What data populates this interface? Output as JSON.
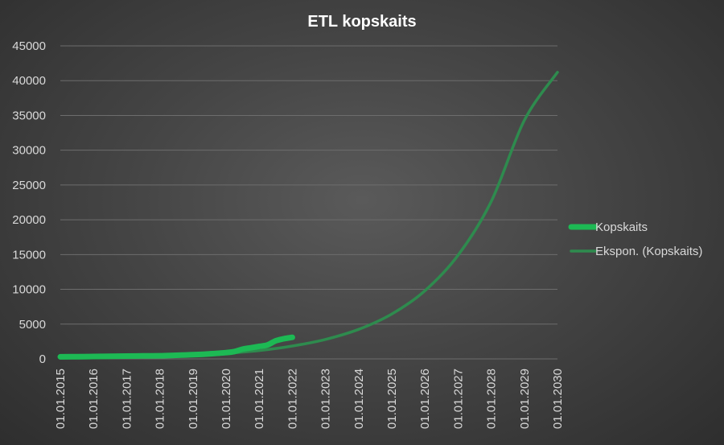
{
  "chart_data": {
    "type": "line",
    "title": "ETL kopskaits",
    "xlabel": "",
    "ylabel": "",
    "ylim": [
      0,
      45000
    ],
    "y_ticks": [
      0,
      5000,
      10000,
      15000,
      20000,
      25000,
      30000,
      35000,
      40000,
      45000
    ],
    "x_ticks": [
      "01.01.2015",
      "01.01.2016",
      "01.01.2017",
      "01.01.2018",
      "01.01.2019",
      "01.01.2020",
      "01.01.2021",
      "01.01.2022",
      "01.01.2023",
      "01.01.2024",
      "01.01.2025",
      "01.01.2026",
      "01.01.2027",
      "01.01.2028",
      "01.01.2029",
      "01.01.2030"
    ],
    "grid": true,
    "legend_position": "right",
    "series": [
      {
        "name": "Kopskaits",
        "color": "#1db954",
        "points": [
          [
            "01.01.2015",
            300
          ],
          [
            "01.07.2015",
            320
          ],
          [
            "01.01.2016",
            350
          ],
          [
            "01.07.2016",
            380
          ],
          [
            "01.01.2017",
            400
          ],
          [
            "01.07.2017",
            430
          ],
          [
            "01.01.2018",
            450
          ],
          [
            "01.07.2018",
            520
          ],
          [
            "01.01.2019",
            600
          ],
          [
            "01.07.2019",
            720
          ],
          [
            "01.01.2020",
            900
          ],
          [
            "01.04.2020",
            1050
          ],
          [
            "01.07.2020",
            1400
          ],
          [
            "01.10.2020",
            1600
          ],
          [
            "01.01.2021",
            1800
          ],
          [
            "01.04.2021",
            2000
          ],
          [
            "01.07.2021",
            2600
          ],
          [
            "01.10.2021",
            2900
          ],
          [
            "01.01.2022",
            3100
          ]
        ]
      },
      {
        "name": "Ekspon. (Kopskaits)",
        "color": "#2e8b4e",
        "trend": "exponential",
        "points": [
          [
            "01.01.2015",
            100
          ],
          [
            "01.01.2016",
            150
          ],
          [
            "01.01.2017",
            230
          ],
          [
            "01.01.2018",
            350
          ],
          [
            "01.01.2019",
            520
          ],
          [
            "01.01.2020",
            800
          ],
          [
            "01.01.2021",
            1200
          ],
          [
            "01.01.2022",
            1850
          ],
          [
            "01.01.2023",
            2800
          ],
          [
            "01.01.2024",
            4250
          ],
          [
            "01.01.2025",
            6450
          ],
          [
            "01.01.2026",
            9800
          ],
          [
            "01.01.2027",
            14900
          ],
          [
            "01.01.2028",
            22600
          ],
          [
            "01.01.2029",
            34300
          ],
          [
            "01.01.2030",
            41200
          ]
        ]
      }
    ]
  }
}
